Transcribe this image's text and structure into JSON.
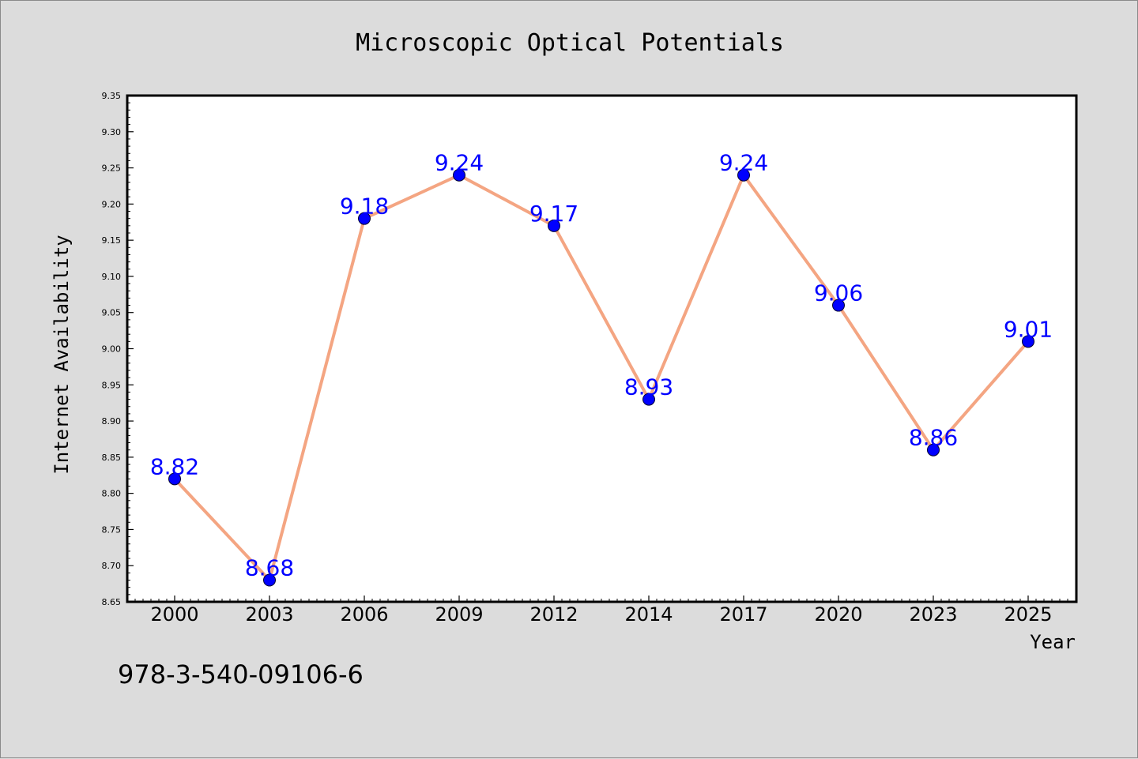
{
  "footer": {
    "code": "978-3-540-09106-6"
  },
  "colors": {
    "background": "#dcdcdc",
    "plot_background": "#ffffff",
    "line": "#f4a582",
    "marker": "#0000ff",
    "data_label": "#0000ff"
  },
  "chart_data": {
    "type": "line",
    "title": "Microscopic Optical Potentials",
    "xlabel": "Year",
    "ylabel": "Internet Availability",
    "categories": [
      "2000",
      "2003",
      "2006",
      "2009",
      "2012",
      "2014",
      "2017",
      "2020",
      "2023",
      "2025"
    ],
    "series": [
      {
        "values": [
          8.82,
          8.68,
          9.18,
          9.24,
          9.17,
          8.93,
          9.24,
          9.06,
          8.86,
          9.01
        ],
        "data_labels": [
          "8.82",
          "8.68",
          "9.18",
          "9.24",
          "9.17",
          "8.93",
          "9.24",
          "9.06",
          "8.86",
          "9.01"
        ]
      }
    ],
    "ylim": [
      8.65,
      9.35
    ],
    "yticks": [
      "8.65",
      "8.70",
      "8.75",
      "8.80",
      "8.85",
      "8.90",
      "8.95",
      "9.00",
      "9.05",
      "9.10",
      "9.15",
      "9.20",
      "9.25",
      "9.30",
      "9.35"
    ],
    "grid": false,
    "legend": "none"
  }
}
